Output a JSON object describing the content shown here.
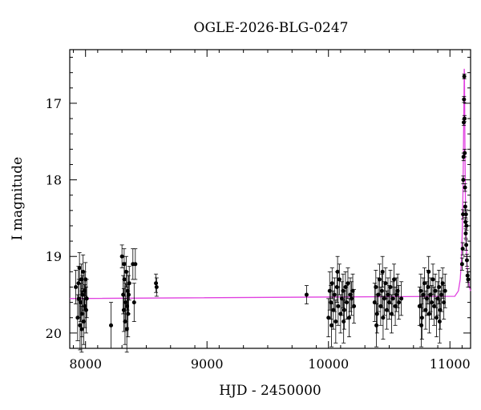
{
  "chart_data": {
    "type": "scatter",
    "title": "OGLE-2026-BLG-0247",
    "xlabel": "HJD - 2450000",
    "ylabel": "I magnitude",
    "xlim": [
      7870,
      11170
    ],
    "ylim": [
      20.2,
      16.3
    ],
    "y_inverted": true,
    "x_ticks": [
      8000,
      9000,
      10000,
      11000
    ],
    "x_tick_labels": [
      "8000",
      "9000",
      "10000",
      "11000"
    ],
    "y_ticks": [
      17,
      18,
      19,
      20
    ],
    "y_tick_labels": [
      "17",
      "18",
      "19",
      "20"
    ],
    "grid": false,
    "colors": {
      "points": "#000000",
      "model": "#e040e0"
    },
    "model": {
      "name": "",
      "baseline": 19.55,
      "peak_time": 11118,
      "peak_mag": 16.5,
      "x": [
        7870,
        11040,
        11070,
        11085,
        11095,
        11103,
        11108,
        11112,
        11115,
        11117,
        11118,
        11119,
        11121,
        11124,
        11128,
        11133,
        11140,
        11150,
        11160,
        11170
      ],
      "y": [
        19.55,
        19.52,
        19.45,
        19.3,
        19.05,
        18.6,
        18.1,
        17.5,
        17.0,
        16.7,
        16.55,
        16.6,
        16.95,
        17.6,
        18.3,
        18.8,
        19.1,
        19.3,
        19.4,
        19.45
      ]
    },
    "series": [
      {
        "name": "",
        "points": [
          [
            7920,
            19.4,
            0.22
          ],
          [
            7935,
            19.8,
            0.3
          ],
          [
            7945,
            19.55,
            0.25
          ],
          [
            7955,
            19.9,
            0.32
          ],
          [
            7960,
            19.6,
            0.25
          ],
          [
            7965,
            19.3,
            0.2
          ],
          [
            7970,
            19.75,
            0.3
          ],
          [
            7975,
            19.5,
            0.25
          ],
          [
            7980,
            19.2,
            0.22
          ],
          [
            7985,
            19.85,
            0.3
          ],
          [
            7990,
            19.45,
            0.25
          ],
          [
            7995,
            19.65,
            0.28
          ],
          [
            8000,
            19.3,
            0.22
          ],
          [
            8005,
            19.7,
            0.3
          ],
          [
            7950,
            19.15,
            0.2
          ],
          [
            7968,
            19.95,
            0.3
          ],
          [
            7942,
            19.35,
            0.22
          ],
          [
            8010,
            19.55,
            0.25
          ],
          [
            8210,
            19.9,
            0.3
          ],
          [
            8300,
            19.0,
            0.15
          ],
          [
            8310,
            19.5,
            0.25
          ],
          [
            8315,
            19.7,
            0.28
          ],
          [
            8320,
            19.3,
            0.22
          ],
          [
            8325,
            19.85,
            0.3
          ],
          [
            8330,
            19.6,
            0.25
          ],
          [
            8335,
            19.2,
            0.2
          ],
          [
            8340,
            19.95,
            0.3
          ],
          [
            8345,
            19.45,
            0.25
          ],
          [
            8350,
            19.75,
            0.3
          ],
          [
            8355,
            19.5,
            0.25
          ],
          [
            8360,
            19.35,
            0.22
          ],
          [
            8318,
            19.1,
            0.2
          ],
          [
            8342,
            19.65,
            0.28
          ],
          [
            8390,
            19.1,
            0.2
          ],
          [
            8400,
            19.6,
            0.25
          ],
          [
            8410,
            19.1,
            0.2
          ],
          [
            8580,
            19.35,
            0.12
          ],
          [
            8585,
            19.4,
            0.12
          ],
          [
            9820,
            19.5,
            0.12
          ],
          [
            10000,
            19.8,
            0.25
          ],
          [
            10010,
            19.45,
            0.25
          ],
          [
            10020,
            19.6,
            0.22
          ],
          [
            10030,
            19.35,
            0.2
          ],
          [
            10040,
            19.7,
            0.25
          ],
          [
            10050,
            19.5,
            0.22
          ],
          [
            10060,
            19.85,
            0.28
          ],
          [
            10070,
            19.4,
            0.2
          ],
          [
            10080,
            19.65,
            0.25
          ],
          [
            10090,
            19.3,
            0.2
          ],
          [
            10100,
            19.75,
            0.25
          ],
          [
            10110,
            19.55,
            0.22
          ],
          [
            10120,
            19.45,
            0.22
          ],
          [
            10130,
            19.7,
            0.25
          ],
          [
            10140,
            19.4,
            0.2
          ],
          [
            10150,
            19.6,
            0.22
          ],
          [
            10160,
            19.35,
            0.2
          ],
          [
            10170,
            19.8,
            0.25
          ],
          [
            10180,
            19.5,
            0.22
          ],
          [
            10190,
            19.55,
            0.22
          ],
          [
            10200,
            19.45,
            0.22
          ],
          [
            10210,
            19.65,
            0.22
          ],
          [
            10025,
            19.9,
            0.28
          ],
          [
            10075,
            19.2,
            0.2
          ],
          [
            10125,
            19.85,
            0.28
          ],
          [
            10380,
            19.6,
            0.25
          ],
          [
            10390,
            19.4,
            0.22
          ],
          [
            10400,
            19.75,
            0.25
          ],
          [
            10410,
            19.5,
            0.22
          ],
          [
            10420,
            19.3,
            0.2
          ],
          [
            10430,
            19.65,
            0.25
          ],
          [
            10440,
            19.45,
            0.22
          ],
          [
            10450,
            19.8,
            0.28
          ],
          [
            10460,
            19.55,
            0.22
          ],
          [
            10470,
            19.35,
            0.2
          ],
          [
            10480,
            19.7,
            0.25
          ],
          [
            10490,
            19.5,
            0.22
          ],
          [
            10500,
            19.6,
            0.22
          ],
          [
            10510,
            19.4,
            0.22
          ],
          [
            10520,
            19.75,
            0.25
          ],
          [
            10530,
            19.55,
            0.22
          ],
          [
            10540,
            19.3,
            0.2
          ],
          [
            10550,
            19.65,
            0.25
          ],
          [
            10560,
            19.5,
            0.22
          ],
          [
            10570,
            19.45,
            0.22
          ],
          [
            10580,
            19.6,
            0.22
          ],
          [
            10600,
            19.55,
            0.22
          ],
          [
            10395,
            19.9,
            0.28
          ],
          [
            10445,
            19.2,
            0.2
          ],
          [
            10750,
            19.65,
            0.25
          ],
          [
            10760,
            19.45,
            0.22
          ],
          [
            10770,
            19.8,
            0.28
          ],
          [
            10780,
            19.5,
            0.22
          ],
          [
            10790,
            19.35,
            0.2
          ],
          [
            10800,
            19.7,
            0.25
          ],
          [
            10810,
            19.55,
            0.22
          ],
          [
            10820,
            19.4,
            0.22
          ],
          [
            10830,
            19.75,
            0.25
          ],
          [
            10840,
            19.5,
            0.22
          ],
          [
            10850,
            19.6,
            0.22
          ],
          [
            10860,
            19.3,
            0.2
          ],
          [
            10870,
            19.65,
            0.25
          ],
          [
            10880,
            19.45,
            0.22
          ],
          [
            10890,
            19.8,
            0.25
          ],
          [
            10900,
            19.55,
            0.22
          ],
          [
            10910,
            19.4,
            0.22
          ],
          [
            10920,
            19.7,
            0.25
          ],
          [
            10930,
            19.5,
            0.22
          ],
          [
            10940,
            19.35,
            0.2
          ],
          [
            10950,
            19.6,
            0.22
          ],
          [
            10960,
            19.45,
            0.22
          ],
          [
            10765,
            19.9,
            0.28
          ],
          [
            10825,
            19.2,
            0.2
          ],
          [
            10915,
            19.85,
            0.28
          ],
          [
            11100,
            19.1,
            0.08
          ],
          [
            11105,
            18.9,
            0.08
          ],
          [
            11108,
            18.45,
            0.06
          ],
          [
            11110,
            18.0,
            0.05
          ],
          [
            11112,
            17.7,
            0.05
          ],
          [
            11114,
            17.25,
            0.04
          ],
          [
            11116,
            16.95,
            0.04
          ],
          [
            11118,
            16.65,
            0.03
          ],
          [
            11120,
            17.2,
            0.04
          ],
          [
            11122,
            17.65,
            0.05
          ],
          [
            11124,
            18.1,
            0.05
          ],
          [
            11126,
            18.35,
            0.06
          ],
          [
            11128,
            18.55,
            0.06
          ],
          [
            11130,
            18.7,
            0.06
          ],
          [
            11134,
            18.85,
            0.07
          ],
          [
            11136,
            18.6,
            0.06
          ],
          [
            11140,
            19.05,
            0.08
          ],
          [
            11145,
            19.25,
            0.09
          ],
          [
            11150,
            19.3,
            0.1
          ],
          [
            11132,
            18.45,
            0.06
          ]
        ]
      }
    ]
  }
}
